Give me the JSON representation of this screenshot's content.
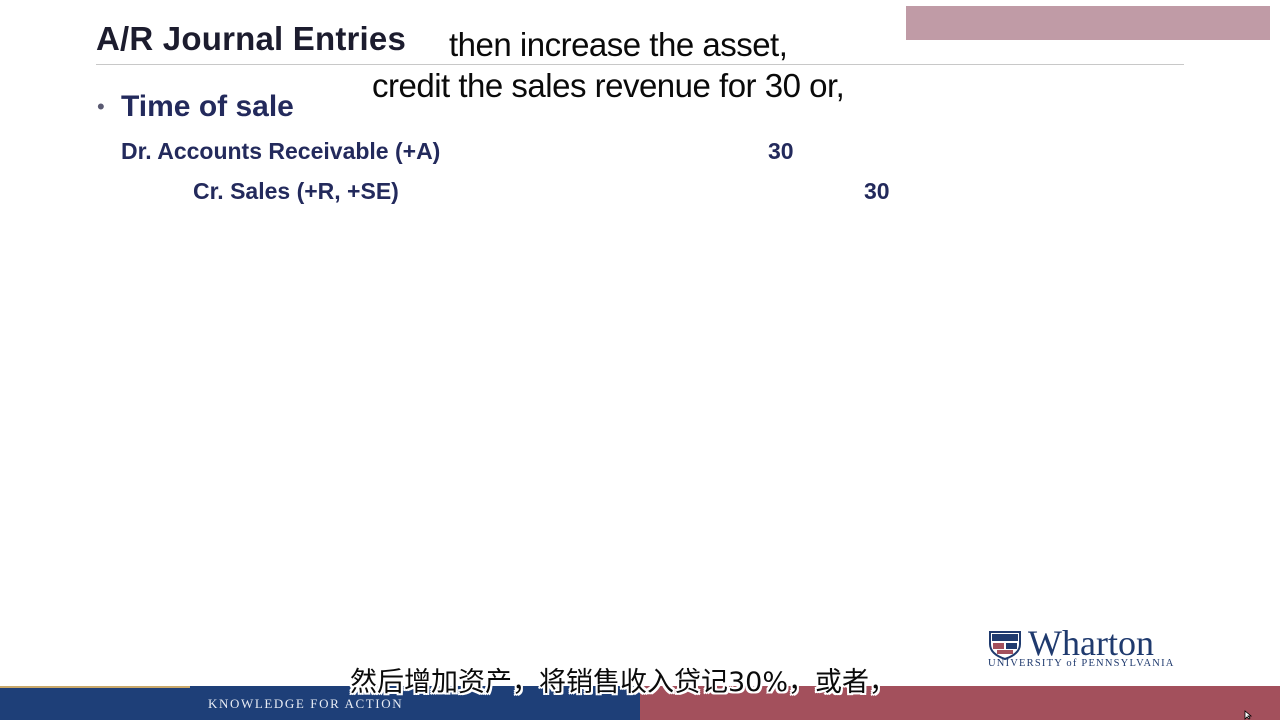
{
  "slide": {
    "title": "A/R Journal Entries",
    "bullet": "Time of sale",
    "debit": {
      "label": "Dr. Accounts Receivable (+A)",
      "amount": "30"
    },
    "credit": {
      "label": "Cr. Sales (+R, +SE)",
      "amount": "30"
    }
  },
  "captions": {
    "english_line1": "then increase the asset,",
    "english_line2": "credit the sales revenue for 30 or,",
    "chinese": "然后增加资产，将销售收入贷记30%，或者，"
  },
  "logo": {
    "name": "Wharton",
    "subtitle": "UNIVERSITY of PENNSYLVANIA"
  },
  "footer": {
    "tagline": "KNOWLEDGE FOR ACTION"
  },
  "colors": {
    "footer_blue": "#1e3f78",
    "footer_red": "#a3505c",
    "text_navy": "#232a5c",
    "logo_blue": "#1f3a6e"
  }
}
